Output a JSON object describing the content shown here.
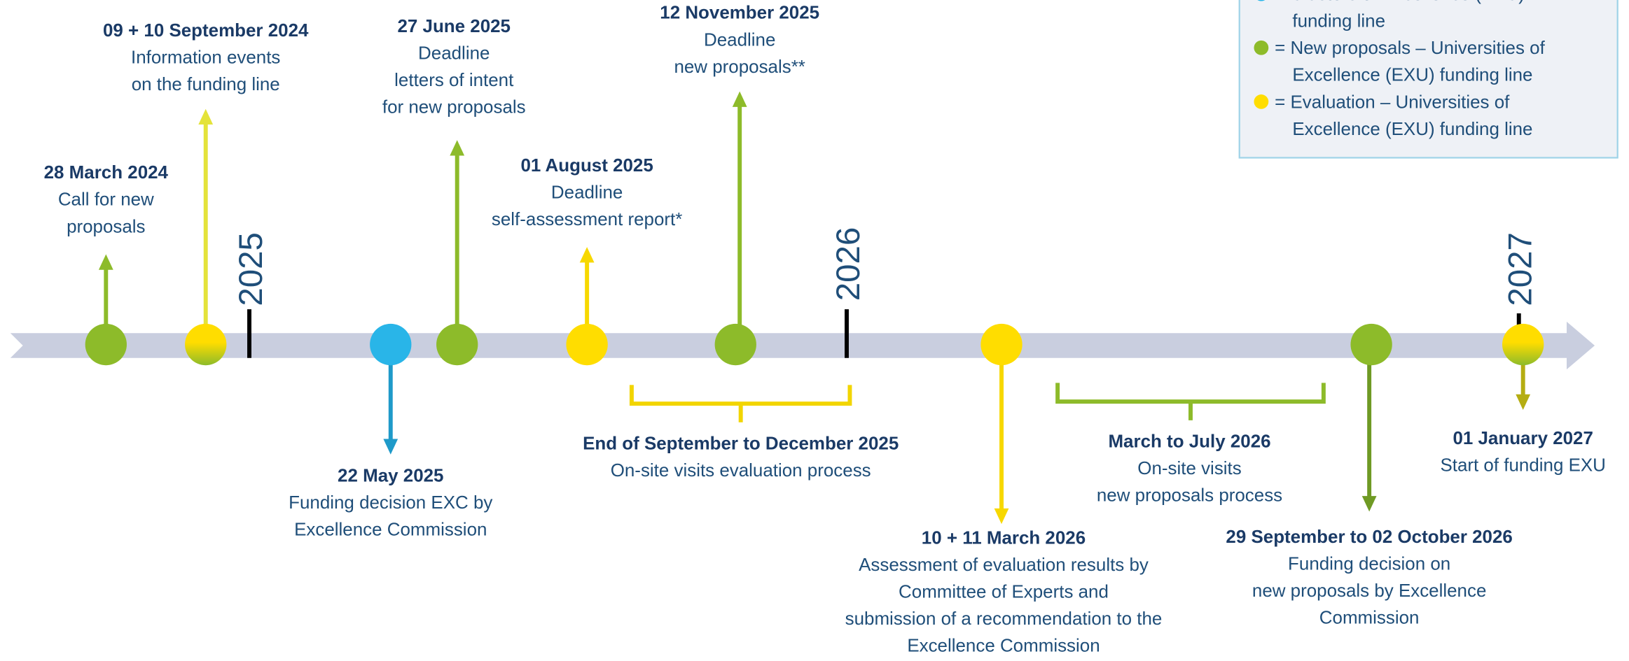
{
  "years": [
    "2025",
    "2026",
    "2027"
  ],
  "events": [
    {
      "date": "28 March 2024",
      "lines": [
        "Call for new",
        "proposals"
      ]
    },
    {
      "date": "09 + 10 September 2024",
      "lines": [
        "Information events",
        "on the funding line"
      ]
    },
    {
      "date": "22 May 2025",
      "lines": [
        "Funding decision EXC by",
        "Excellence Commission"
      ]
    },
    {
      "date": "27 June 2025",
      "lines": [
        "Deadline",
        "letters of intent",
        "for new proposals"
      ]
    },
    {
      "date": "01 August 2025",
      "lines": [
        "Deadline",
        "self-assessment report*"
      ]
    },
    {
      "date": "12 November 2025",
      "lines": [
        "Deadline",
        "new proposals**"
      ]
    },
    {
      "date": "End of September to December 2025",
      "lines": [
        "On-site visits evaluation process"
      ]
    },
    {
      "date": "10 + 11 March 2026",
      "lines": [
        "Assessment of evaluation results by",
        "Committee of Experts and",
        "submission of a recommendation to the",
        "Excellence Commission"
      ]
    },
    {
      "date": "March to July 2026",
      "lines": [
        "On-site visits",
        "new proposals process"
      ]
    },
    {
      "date": "29 September to 02 October 2026",
      "lines": [
        "Funding decision on",
        "new proposals by Excellence",
        "Commission"
      ]
    },
    {
      "date": "01 January 2027",
      "lines": [
        "Start of funding EXU"
      ]
    }
  ],
  "legend": [
    {
      "lines": [
        "= Clusters of Excellence (EXC)",
        "funding line"
      ]
    },
    {
      "lines": [
        "= New proposals – Universities of",
        "Excellence (EXU) funding line"
      ]
    },
    {
      "lines": [
        "= Evaluation – Universities of",
        "Excellence (EXU) funding line"
      ]
    }
  ]
}
